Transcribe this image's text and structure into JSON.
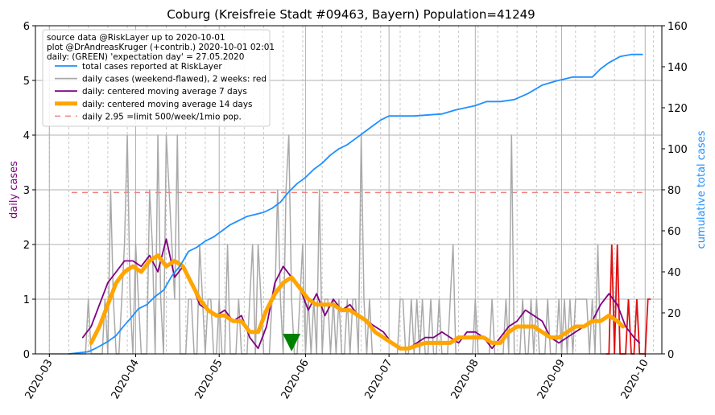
{
  "chart_data": {
    "type": "line",
    "title": "Coburg (Kreisfreie Stadt #09463, Bayern) Population=41249",
    "ylabel_left": "daily cases",
    "ylabel_right": "cumulative total cases",
    "ylim_left": [
      0,
      6
    ],
    "ylim_right": [
      0,
      160
    ],
    "y_ticks_left": [
      "0",
      "1",
      "2",
      "3",
      "4",
      "5",
      "6"
    ],
    "y_ticks_right": [
      "0",
      "20",
      "40",
      "60",
      "80",
      "100",
      "120",
      "140",
      "160"
    ],
    "x_ticks": [
      "2020-03",
      "2020-04",
      "2020-05",
      "2020-06",
      "2020-07",
      "2020-08",
      "2020-09",
      "2020-10"
    ],
    "x_tick_dates": [
      "2020-03-01",
      "2020-04-01",
      "2020-05-01",
      "2020-06-01",
      "2020-07-01",
      "2020-08-01",
      "2020-09-01",
      "2020-10-01"
    ],
    "grid": true,
    "legend_position": "top-left",
    "info_lines": [
      "source data @RiskLayer up to 2020-10-01",
      "plot @DrAndreasKruger (+contrib.) 2020-10-01 02:01",
      "daily: (GREEN) 'expectation day' = 27.05.2020"
    ],
    "expectation_day": "2020-05-27",
    "limit_line": {
      "value": 2.95,
      "label": "daily 2.95 =limit 500/week/1mio pop.",
      "from": "2020-03-09",
      "to": "2020-09-30"
    },
    "series": [
      {
        "name": "total cases reported at RiskLayer",
        "axis": "right",
        "color": "#1e90ff",
        "points": [
          [
            "2020-03-08",
            0
          ],
          [
            "2020-03-15",
            1
          ],
          [
            "2020-03-18",
            3
          ],
          [
            "2020-03-22",
            6
          ],
          [
            "2020-03-25",
            9
          ],
          [
            "2020-03-28",
            14
          ],
          [
            "2020-03-30",
            17
          ],
          [
            "2020-04-02",
            22
          ],
          [
            "2020-04-05",
            24
          ],
          [
            "2020-04-08",
            28
          ],
          [
            "2020-04-11",
            31
          ],
          [
            "2020-04-14",
            38
          ],
          [
            "2020-04-17",
            43
          ],
          [
            "2020-04-20",
            50
          ],
          [
            "2020-04-23",
            52
          ],
          [
            "2020-04-26",
            55
          ],
          [
            "2020-04-29",
            57
          ],
          [
            "2020-05-02",
            60
          ],
          [
            "2020-05-05",
            63
          ],
          [
            "2020-05-08",
            65
          ],
          [
            "2020-05-11",
            67
          ],
          [
            "2020-05-14",
            68
          ],
          [
            "2020-05-17",
            69
          ],
          [
            "2020-05-20",
            71
          ],
          [
            "2020-05-23",
            74
          ],
          [
            "2020-05-26",
            79
          ],
          [
            "2020-05-29",
            83
          ],
          [
            "2020-06-01",
            86
          ],
          [
            "2020-06-04",
            90
          ],
          [
            "2020-06-07",
            93
          ],
          [
            "2020-06-10",
            97
          ],
          [
            "2020-06-13",
            100
          ],
          [
            "2020-06-16",
            102
          ],
          [
            "2020-06-19",
            105
          ],
          [
            "2020-06-22",
            108
          ],
          [
            "2020-06-25",
            111
          ],
          [
            "2020-06-28",
            114
          ],
          [
            "2020-07-01",
            116
          ],
          [
            "2020-07-10",
            116
          ],
          [
            "2020-07-20",
            117
          ],
          [
            "2020-07-25",
            119
          ],
          [
            "2020-08-01",
            121
          ],
          [
            "2020-08-05",
            123
          ],
          [
            "2020-08-10",
            123
          ],
          [
            "2020-08-15",
            124
          ],
          [
            "2020-08-20",
            127
          ],
          [
            "2020-08-25",
            131
          ],
          [
            "2020-08-30",
            133
          ],
          [
            "2020-09-05",
            135
          ],
          [
            "2020-09-12",
            135
          ],
          [
            "2020-09-15",
            139
          ],
          [
            "2020-09-18",
            142
          ],
          [
            "2020-09-22",
            145
          ],
          [
            "2020-09-26",
            146
          ],
          [
            "2020-09-30",
            146
          ]
        ]
      },
      {
        "name": "daily cases (weekend-flawed), 2 weeks: red",
        "axis": "left",
        "color": "#a9a9a9",
        "recent_color": "#e01010",
        "dates_from": "2020-03-01",
        "values": [
          0,
          0,
          0,
          0,
          0,
          0,
          0,
          0,
          0,
          0,
          0,
          0,
          0,
          0,
          1,
          0,
          0,
          0,
          0,
          0,
          1,
          0,
          3,
          1,
          0,
          0,
          1,
          2,
          4,
          1,
          0,
          2,
          1,
          0,
          0,
          0,
          3,
          2,
          0,
          4,
          1,
          0,
          4,
          3,
          2,
          1,
          4,
          0,
          0,
          0,
          1,
          1,
          0,
          0,
          2,
          1,
          0,
          1,
          1,
          0,
          0,
          1,
          0,
          0,
          2,
          0,
          0,
          0,
          1,
          0,
          0,
          0,
          1,
          2,
          0,
          2,
          1,
          0,
          0,
          0,
          1,
          1,
          3,
          1,
          0,
          3,
          4,
          1,
          0,
          0,
          1,
          2,
          0,
          1,
          0,
          1,
          0,
          3,
          0,
          1,
          1,
          0,
          1,
          0,
          1,
          0,
          0,
          1,
          0,
          1,
          1,
          0,
          4,
          1,
          0,
          1,
          0,
          0,
          0,
          0,
          0,
          0,
          0,
          0,
          0,
          0,
          1,
          1,
          0,
          0,
          1,
          0,
          1,
          0,
          1,
          0,
          0,
          1,
          0,
          0,
          1,
          0,
          0,
          0,
          1,
          2,
          0,
          0,
          0,
          0,
          0,
          0,
          0,
          1,
          0,
          0,
          0,
          0,
          0,
          1,
          0,
          0,
          0,
          0,
          1,
          0,
          4,
          0,
          0,
          0,
          1,
          0,
          0,
          1,
          0,
          1,
          0,
          0,
          0,
          1,
          0,
          0,
          0,
          1,
          0,
          1,
          0,
          1,
          0,
          1,
          1,
          1,
          1,
          1,
          0,
          1,
          0,
          2,
          0,
          0,
          0,
          0,
          2,
          0,
          2,
          0,
          0,
          0,
          1,
          0,
          0,
          1,
          0,
          0,
          0,
          1,
          1
        ]
      },
      {
        "name": "daily: centered moving average 7 days",
        "axis": "left",
        "color": "#800080",
        "points": [
          [
            "2020-03-13",
            0.3
          ],
          [
            "2020-03-16",
            0.5
          ],
          [
            "2020-03-19",
            0.9
          ],
          [
            "2020-03-22",
            1.3
          ],
          [
            "2020-03-25",
            1.5
          ],
          [
            "2020-03-28",
            1.7
          ],
          [
            "2020-03-31",
            1.7
          ],
          [
            "2020-04-03",
            1.6
          ],
          [
            "2020-04-06",
            1.8
          ],
          [
            "2020-04-09",
            1.5
          ],
          [
            "2020-04-12",
            2.1
          ],
          [
            "2020-04-15",
            1.4
          ],
          [
            "2020-04-18",
            1.6
          ],
          [
            "2020-04-21",
            1.3
          ],
          [
            "2020-04-24",
            0.9
          ],
          [
            "2020-04-27",
            0.8
          ],
          [
            "2020-04-30",
            0.7
          ],
          [
            "2020-05-03",
            0.8
          ],
          [
            "2020-05-06",
            0.6
          ],
          [
            "2020-05-09",
            0.7
          ],
          [
            "2020-05-12",
            0.3
          ],
          [
            "2020-05-15",
            0.1
          ],
          [
            "2020-05-18",
            0.5
          ],
          [
            "2020-05-21",
            1.3
          ],
          [
            "2020-05-24",
            1.6
          ],
          [
            "2020-05-27",
            1.4
          ],
          [
            "2020-05-30",
            1.2
          ],
          [
            "2020-06-02",
            0.8
          ],
          [
            "2020-06-05",
            1.1
          ],
          [
            "2020-06-08",
            0.7
          ],
          [
            "2020-06-11",
            1.0
          ],
          [
            "2020-06-14",
            0.8
          ],
          [
            "2020-06-17",
            0.9
          ],
          [
            "2020-06-20",
            0.7
          ],
          [
            "2020-06-23",
            0.6
          ],
          [
            "2020-06-26",
            0.5
          ],
          [
            "2020-06-29",
            0.4
          ],
          [
            "2020-07-02",
            0.2
          ],
          [
            "2020-07-05",
            0.1
          ],
          [
            "2020-07-08",
            0.1
          ],
          [
            "2020-07-11",
            0.2
          ],
          [
            "2020-07-14",
            0.3
          ],
          [
            "2020-07-17",
            0.3
          ],
          [
            "2020-07-20",
            0.4
          ],
          [
            "2020-07-23",
            0.3
          ],
          [
            "2020-07-26",
            0.2
          ],
          [
            "2020-07-29",
            0.4
          ],
          [
            "2020-08-01",
            0.4
          ],
          [
            "2020-08-04",
            0.3
          ],
          [
            "2020-08-07",
            0.1
          ],
          [
            "2020-08-10",
            0.3
          ],
          [
            "2020-08-13",
            0.5
          ],
          [
            "2020-08-16",
            0.6
          ],
          [
            "2020-08-19",
            0.8
          ],
          [
            "2020-08-22",
            0.7
          ],
          [
            "2020-08-25",
            0.6
          ],
          [
            "2020-08-28",
            0.3
          ],
          [
            "2020-08-31",
            0.2
          ],
          [
            "2020-09-03",
            0.3
          ],
          [
            "2020-09-06",
            0.4
          ],
          [
            "2020-09-09",
            0.5
          ],
          [
            "2020-09-12",
            0.6
          ],
          [
            "2020-09-15",
            0.9
          ],
          [
            "2020-09-18",
            1.1
          ],
          [
            "2020-09-21",
            0.9
          ],
          [
            "2020-09-24",
            0.5
          ],
          [
            "2020-09-27",
            0.3
          ],
          [
            "2020-09-29",
            0.2
          ]
        ]
      },
      {
        "name": "daily: centered moving average 14 days",
        "axis": "left",
        "color": "#ffa500",
        "points": [
          [
            "2020-03-16",
            0.2
          ],
          [
            "2020-03-19",
            0.5
          ],
          [
            "2020-03-22",
            0.9
          ],
          [
            "2020-03-25",
            1.3
          ],
          [
            "2020-03-28",
            1.5
          ],
          [
            "2020-03-31",
            1.6
          ],
          [
            "2020-04-03",
            1.5
          ],
          [
            "2020-04-06",
            1.7
          ],
          [
            "2020-04-09",
            1.8
          ],
          [
            "2020-04-12",
            1.6
          ],
          [
            "2020-04-15",
            1.7
          ],
          [
            "2020-04-18",
            1.6
          ],
          [
            "2020-04-21",
            1.3
          ],
          [
            "2020-04-24",
            1.0
          ],
          [
            "2020-04-27",
            0.8
          ],
          [
            "2020-04-30",
            0.7
          ],
          [
            "2020-05-03",
            0.7
          ],
          [
            "2020-05-06",
            0.6
          ],
          [
            "2020-05-09",
            0.6
          ],
          [
            "2020-05-12",
            0.4
          ],
          [
            "2020-05-15",
            0.4
          ],
          [
            "2020-05-18",
            0.8
          ],
          [
            "2020-05-21",
            1.1
          ],
          [
            "2020-05-24",
            1.3
          ],
          [
            "2020-05-27",
            1.4
          ],
          [
            "2020-05-30",
            1.2
          ],
          [
            "2020-06-02",
            1.0
          ],
          [
            "2020-06-05",
            0.9
          ],
          [
            "2020-06-08",
            0.9
          ],
          [
            "2020-06-11",
            0.9
          ],
          [
            "2020-06-14",
            0.8
          ],
          [
            "2020-06-17",
            0.8
          ],
          [
            "2020-06-20",
            0.7
          ],
          [
            "2020-06-23",
            0.6
          ],
          [
            "2020-06-26",
            0.4
          ],
          [
            "2020-06-29",
            0.3
          ],
          [
            "2020-07-02",
            0.2
          ],
          [
            "2020-07-05",
            0.1
          ],
          [
            "2020-07-08",
            0.1
          ],
          [
            "2020-07-11",
            0.15
          ],
          [
            "2020-07-14",
            0.2
          ],
          [
            "2020-07-17",
            0.2
          ],
          [
            "2020-07-20",
            0.2
          ],
          [
            "2020-07-23",
            0.2
          ],
          [
            "2020-07-26",
            0.3
          ],
          [
            "2020-07-29",
            0.3
          ],
          [
            "2020-08-01",
            0.3
          ],
          [
            "2020-08-04",
            0.3
          ],
          [
            "2020-08-07",
            0.2
          ],
          [
            "2020-08-10",
            0.2
          ],
          [
            "2020-08-13",
            0.4
          ],
          [
            "2020-08-16",
            0.5
          ],
          [
            "2020-08-19",
            0.5
          ],
          [
            "2020-08-22",
            0.5
          ],
          [
            "2020-08-25",
            0.4
          ],
          [
            "2020-08-28",
            0.3
          ],
          [
            "2020-08-31",
            0.3
          ],
          [
            "2020-09-03",
            0.4
          ],
          [
            "2020-09-06",
            0.5
          ],
          [
            "2020-09-09",
            0.5
          ],
          [
            "2020-09-12",
            0.6
          ],
          [
            "2020-09-15",
            0.6
          ],
          [
            "2020-09-18",
            0.7
          ],
          [
            "2020-09-21",
            0.6
          ],
          [
            "2020-09-23",
            0.5
          ]
        ]
      }
    ]
  }
}
